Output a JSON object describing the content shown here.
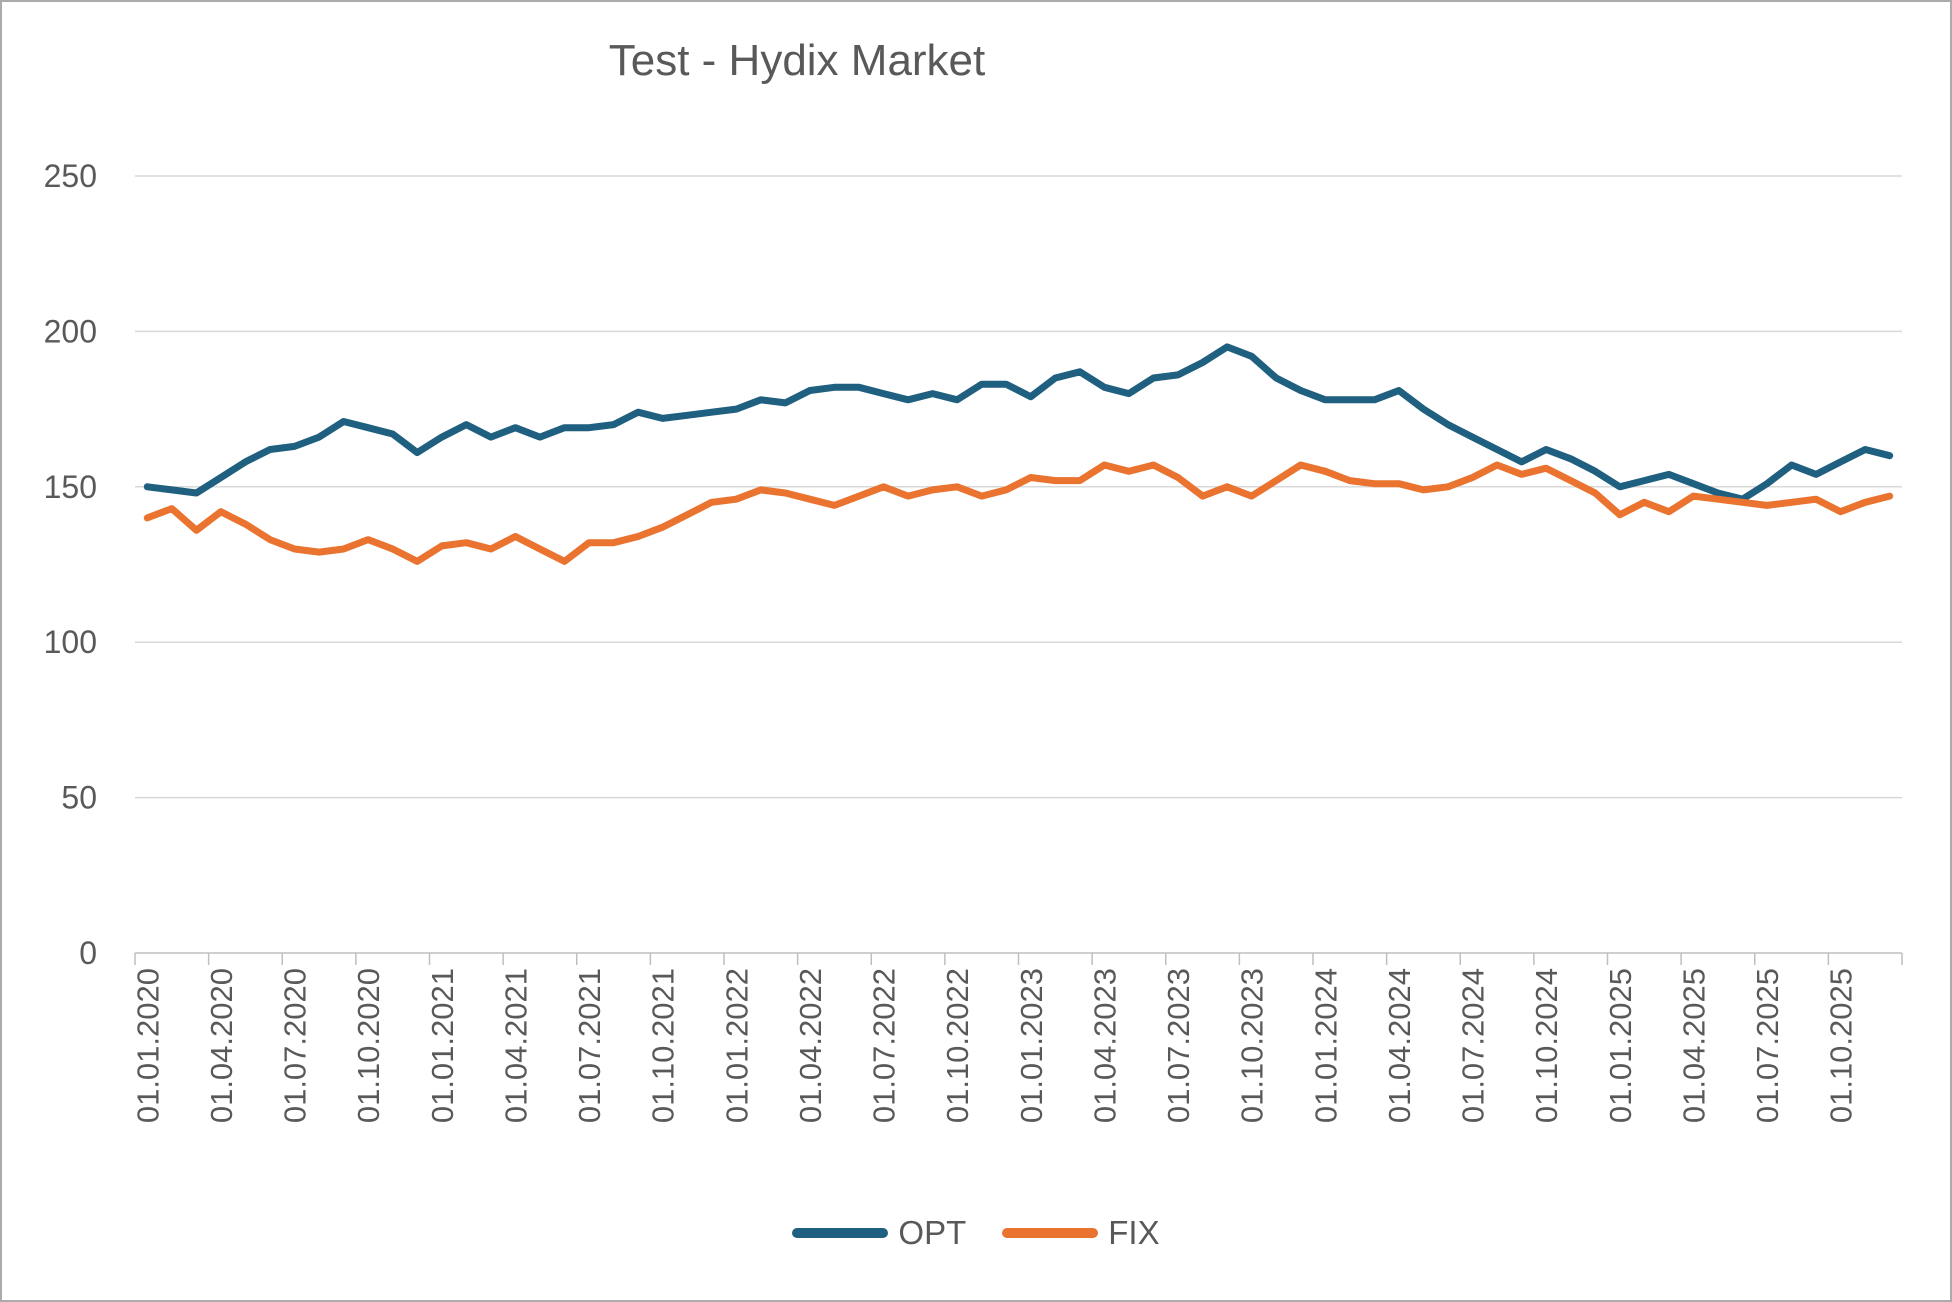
{
  "title": "Test - Hydix Market",
  "colors": {
    "opt_series": "#1F5F7F",
    "fix_series": "#E9732F",
    "text": "#595959",
    "gridline": "#D9D9D9",
    "axis": "#BFBFBF",
    "frame": "#ABABAB"
  },
  "legend": {
    "items": [
      {
        "label": "OPT",
        "color": "#1F5F7F"
      },
      {
        "label": "FIX",
        "color": "#E9732F"
      }
    ]
  },
  "chart_data": {
    "type": "line",
    "title": "Test - Hydix Market",
    "xlabel": "",
    "ylabel": "",
    "ylim": [
      0,
      250
    ],
    "y_ticks": [
      0,
      50,
      100,
      150,
      200,
      250
    ],
    "grid": true,
    "legend_position": "bottom",
    "x_label_every_n_months": 3,
    "x_labels": [
      "01.01.2020",
      "01.04.2020",
      "01.07.2020",
      "01.10.2020",
      "01.01.2021",
      "01.04.2021",
      "01.07.2021",
      "01.10.2021",
      "01.01.2022",
      "01.04.2022",
      "01.07.2022",
      "01.10.2022",
      "01.01.2023",
      "01.04.2023",
      "01.07.2023",
      "01.10.2023",
      "01.01.2024",
      "01.04.2024",
      "01.07.2024",
      "01.10.2024",
      "01.01.2025",
      "01.04.2025",
      "01.07.2025",
      "01.10.2025"
    ],
    "series": [
      {
        "name": "OPT",
        "color": "#1F5F7F",
        "values": [
          150,
          149,
          148,
          153,
          158,
          162,
          163,
          166,
          171,
          169,
          167,
          161,
          166,
          170,
          166,
          169,
          166,
          169,
          169,
          170,
          174,
          172,
          173,
          174,
          175,
          178,
          177,
          181,
          182,
          182,
          180,
          178,
          180,
          178,
          183,
          183,
          179,
          185,
          187,
          182,
          180,
          185,
          186,
          190,
          195,
          192,
          185,
          181,
          178,
          178,
          178,
          181,
          175,
          170,
          166,
          162,
          158,
          162,
          159,
          155,
          150,
          152,
          154,
          151,
          148,
          146,
          151,
          157,
          154,
          158,
          162,
          160
        ]
      },
      {
        "name": "FIX",
        "color": "#E9732F",
        "values": [
          140,
          143,
          136,
          142,
          138,
          133,
          130,
          129,
          130,
          133,
          130,
          126,
          131,
          132,
          130,
          134,
          130,
          126,
          132,
          132,
          134,
          137,
          141,
          145,
          146,
          149,
          148,
          146,
          144,
          147,
          150,
          147,
          149,
          150,
          147,
          149,
          153,
          152,
          152,
          157,
          155,
          157,
          153,
          147,
          150,
          147,
          152,
          157,
          155,
          152,
          151,
          151,
          149,
          150,
          153,
          157,
          154,
          156,
          152,
          148,
          141,
          145,
          142,
          147,
          146,
          145,
          144,
          145,
          146,
          142,
          145,
          147
        ]
      }
    ]
  }
}
